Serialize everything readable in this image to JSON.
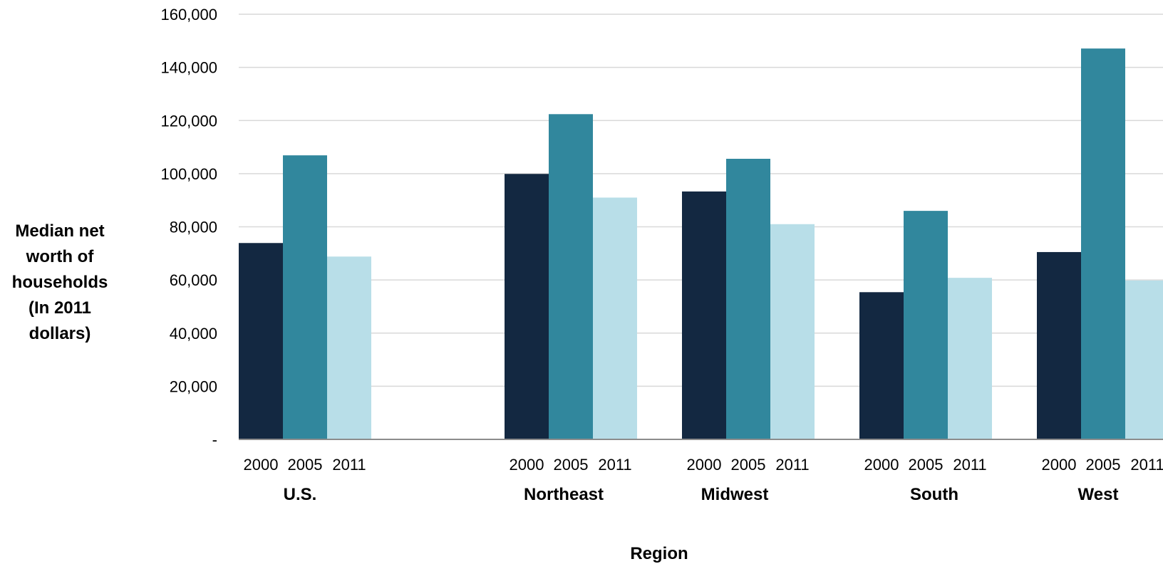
{
  "chart_data": {
    "type": "bar",
    "title": "",
    "xlabel": "Region",
    "ylabel_lines": [
      "Median net",
      "worth  of",
      "households",
      "(In 2011",
      "dollars)"
    ],
    "ylim": [
      0,
      160000
    ],
    "y_ticks": [
      0,
      20000,
      40000,
      60000,
      80000,
      100000,
      120000,
      140000,
      160000
    ],
    "y_tick_labels": [
      "-",
      "20,000",
      "40,000",
      "60,000",
      "80,000",
      "100,000",
      "120,000",
      "140,000",
      "160,000"
    ],
    "grid": true,
    "legend": "none",
    "categories": [
      "U.S.",
      "Northeast",
      "Midwest",
      "South",
      "West"
    ],
    "sub_categories": [
      "2000",
      "2005",
      "2011"
    ],
    "colors": [
      "#132841",
      "#31879d",
      "#b8dee8"
    ],
    "series": [
      {
        "values": [
          73900,
          99900,
          93300,
          55400,
          70500
        ]
      },
      {
        "values": [
          106900,
          122400,
          105600,
          86000,
          147100
        ]
      },
      {
        "values": [
          68800,
          91000,
          81000,
          60800,
          59800
        ]
      }
    ]
  }
}
